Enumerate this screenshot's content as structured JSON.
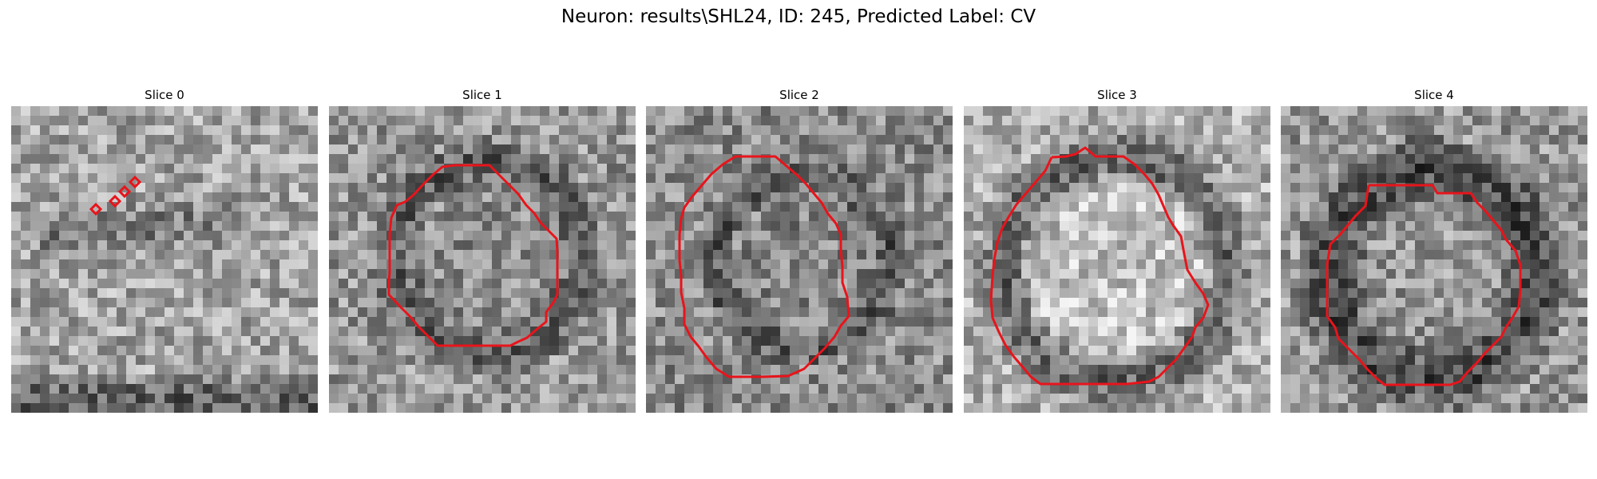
{
  "figure": {
    "title": "Neuron: results\\SHL24, ID: 245, Predicted Label: CV"
  },
  "panels": [
    {
      "title": "Slice 0",
      "image": "grayscale-noise-slice-0",
      "outline_color": "#e8141b"
    },
    {
      "title": "Slice 1",
      "image": "grayscale-noise-slice-1",
      "outline_color": "#e8141b"
    },
    {
      "title": "Slice 2",
      "image": "grayscale-noise-slice-2",
      "outline_color": "#e8141b"
    },
    {
      "title": "Slice 3",
      "image": "grayscale-noise-slice-3",
      "outline_color": "#e8141b"
    },
    {
      "title": "Slice 4",
      "image": "grayscale-noise-slice-4",
      "outline_color": "#e8141b"
    }
  ]
}
